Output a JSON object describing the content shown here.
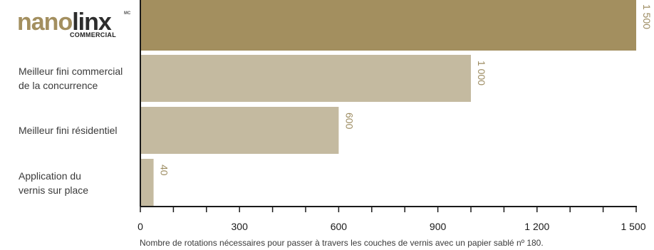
{
  "logo": {
    "word_part1": "nano",
    "word_part2": "linx",
    "trademark": "MC",
    "subtitle": "COMMERCIAL"
  },
  "chart_data": {
    "type": "bar",
    "orientation": "horizontal",
    "categories": [
      "nanolinx COMMERCIAL",
      "Meilleur fini commercial de la concurrence",
      "Meilleur fini résidentiel",
      "Application du vernis sur place"
    ],
    "values": [
      1500,
      1000,
      600,
      40
    ],
    "value_labels": [
      "1 500",
      "1 000",
      "600",
      "40"
    ],
    "category_labels": [
      null,
      [
        "Meilleur fini commercial",
        "de la concurrence"
      ],
      [
        "Meilleur fini résidentiel"
      ],
      [
        "Application du",
        "vernis sur place"
      ]
    ],
    "xlim": [
      0,
      1500
    ],
    "xticks": [
      0,
      300,
      600,
      900,
      1200,
      1500
    ],
    "xtick_labels": [
      "0",
      "300",
      "600",
      "900",
      "1 200",
      "1 500"
    ],
    "xlabel": "Nombre de rotations nécessaires pour passer à travers les couches de vernis avec un papier sablé nº 180.",
    "colors": {
      "highlight": "#a38f5f",
      "other": "#c4baa0",
      "value_label": "#9c8b60",
      "axis": "#1a1a1a"
    },
    "grid": false,
    "legend": "none"
  }
}
